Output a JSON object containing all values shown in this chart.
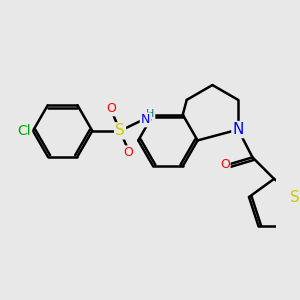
{
  "background_color": "#e8e8e8",
  "bond_color": "#000000",
  "bond_width": 1.8,
  "atom_colors": {
    "Cl": "#00aa00",
    "S_sulfonamide": "#cccc00",
    "S_thiophene": "#cccc00",
    "O": "#ff0000",
    "N": "#0000ff",
    "H": "#008080",
    "C": "#000000"
  },
  "font_size": 9,
  "figsize": [
    3.0,
    3.0
  ],
  "dpi": 100
}
